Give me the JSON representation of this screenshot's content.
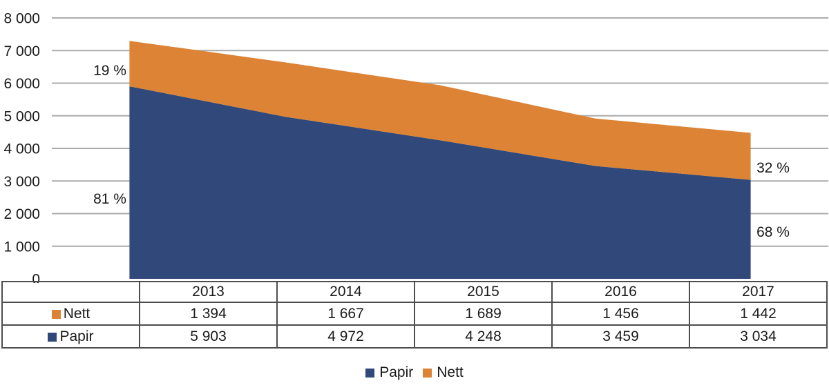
{
  "chart_data": {
    "type": "area",
    "stacked": true,
    "title": "",
    "categories": [
      "2013",
      "2014",
      "2015",
      "2016",
      "2017"
    ],
    "series": [
      {
        "name": "Papir",
        "color": "#30487A",
        "values": [
          5903,
          4972,
          4248,
          3459,
          3034
        ]
      },
      {
        "name": "Nett",
        "color": "#DC8335",
        "values": [
          1394,
          1667,
          1689,
          1456,
          1442
        ]
      }
    ],
    "ylim": [
      0,
      8000
    ],
    "y_tick_step": 1000,
    "y_tick_labels": [
      "0",
      "1 000",
      "2 000",
      "3 000",
      "4 000",
      "5 000",
      "6 000",
      "7 000",
      "8 000"
    ],
    "grid": "horizontal",
    "legend_position": "bottom",
    "annotations": [
      {
        "text": "19 %",
        "series": "Nett",
        "position": "left-of-first-point"
      },
      {
        "text": "81 %",
        "series": "Papir",
        "position": "left-of-first-point"
      },
      {
        "text": "32 %",
        "series": "Nett",
        "position": "right-of-last-point"
      },
      {
        "text": "68 %",
        "series": "Papir",
        "position": "right-of-last-point"
      }
    ]
  },
  "table": {
    "header": [
      "2013",
      "2014",
      "2015",
      "2016",
      "2017"
    ],
    "rows": [
      {
        "label": "Nett",
        "values": [
          "1 394",
          "1 667",
          "1 689",
          "1 456",
          "1 442"
        ]
      },
      {
        "label": "Papir",
        "values": [
          "5 903",
          "4 972",
          "4 248",
          "3 459",
          "3 034"
        ]
      }
    ]
  },
  "legend": {
    "items": [
      {
        "label": "Papir",
        "color": "#30487A"
      },
      {
        "label": "Nett",
        "color": "#DC8335"
      }
    ]
  },
  "colors": {
    "papir": "#30487A",
    "nett": "#DC8335",
    "gridline": "#ABABAB",
    "table_border": "#4d4d4d",
    "text": "#1A1A1A"
  }
}
